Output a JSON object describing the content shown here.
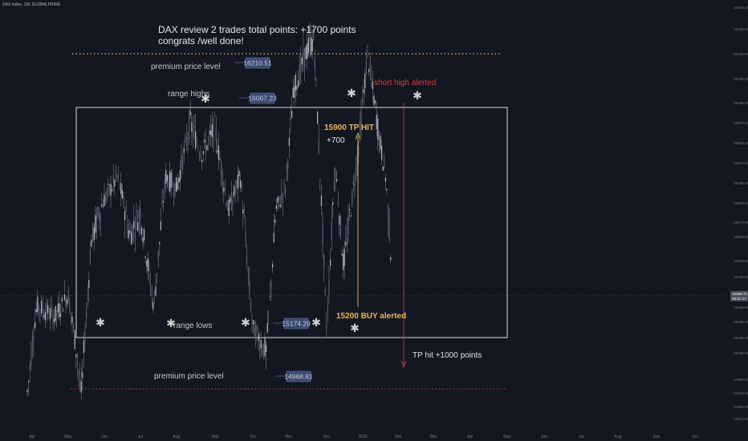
{
  "header": {
    "symbol_line": "DAX Index, 1W, GLOBALPRIME"
  },
  "colors": {
    "background": "#131722",
    "candle": "#8a8e98",
    "white": "#d8d8d8",
    "gold": "#e6b85c",
    "red": "#d23c3c",
    "blue_badge": "#3a4a70",
    "axis_text": "#787b86"
  },
  "annotations": {
    "title_line1": "DAX review 2 trades total points: +1700 points",
    "title_line2": "congrats /well done!",
    "premium_top": "premium price level",
    "premium_bottom": "premium price level",
    "range_highs": "range highs",
    "range_lows": "range lows",
    "short_high": "short high alerted",
    "tp_hit_top": "15900 TP HIT",
    "plus_700": "+700",
    "buy_alert": "15200 BUY alerted",
    "tp_hit_bottom": "TP hit +1000 points",
    "asterisk": "✱"
  },
  "price_labels": [
    "16210.51",
    "16067.23",
    "15174.29",
    "14968.81"
  ],
  "current_price_tag": [
    "15296.71",
    "05:01:17"
  ],
  "chart_data": {
    "type": "candlestick",
    "title": "DAX Index, 1W, GLOBALPRIME",
    "x_ticks": [
      "Apr",
      "May",
      "Jun",
      "Jul",
      "Aug",
      "Sep",
      "Oct",
      "Nov",
      "Dec",
      "2022",
      "Feb",
      "Mar",
      "Apr",
      "May",
      "Jun",
      "Jul",
      "Aug",
      "Sep",
      "Oct"
    ],
    "y_ticks": [
      "16410.40",
      "16330.00",
      "16250.00",
      "16150.00",
      "16090.00",
      "15970.00",
      "15890.00",
      "15810.00",
      "15730.00",
      "15650.00",
      "15570.00",
      "15520.00",
      "15420.00",
      "15360.00",
      "15240.00",
      "15180.00",
      "15130.00",
      "15050.00",
      "14960.00",
      "14910.00",
      "14860.00",
      "14812.00"
    ],
    "ylim": [
      14780,
      16440
    ],
    "range_box": {
      "high": 16020,
      "low": 15100
    },
    "premium_high": 16250,
    "premium_low": 14915,
    "current_price": 15296.71,
    "price_path": [
      [
        "Mar 25",
        14820
      ],
      [
        "Apr 05",
        15250
      ],
      [
        "Apr 20",
        15200
      ],
      [
        "May 01",
        15300
      ],
      [
        "May 12",
        14900
      ],
      [
        "May 20",
        15500
      ],
      [
        "Jun 01",
        15650
      ],
      [
        "Jun 12",
        15750
      ],
      [
        "Jun 22",
        15520
      ],
      [
        "Jul 01",
        15600
      ],
      [
        "Jul 12",
        15250
      ],
      [
        "Jul 22",
        15750
      ],
      [
        "Aug 01",
        15700
      ],
      [
        "Aug 12",
        15970
      ],
      [
        "Aug 22",
        15850
      ],
      [
        "Sep 01",
        15950
      ],
      [
        "Sep 12",
        15600
      ],
      [
        "Sep 22",
        15750
      ],
      [
        "Oct 01",
        15150
      ],
      [
        "Oct 12",
        15050
      ],
      [
        "Oct 20",
        15600
      ],
      [
        "Oct 28",
        15700
      ],
      [
        "Nov 05",
        16100
      ],
      [
        "Nov 15",
        16250
      ],
      [
        "Nov 22",
        16300
      ],
      [
        "Dec 01",
        15150
      ],
      [
        "Dec 08",
        15800
      ],
      [
        "Dec 15",
        15400
      ],
      [
        "Dec 22",
        15650
      ],
      [
        "Dec 28",
        15900
      ],
      [
        "Jan 05",
        16250
      ],
      [
        "Jan 12",
        16000
      ],
      [
        "Jan 20",
        15750
      ],
      [
        "Jan 28",
        15200
      ],
      [
        "Feb 01",
        15150
      ]
    ]
  }
}
